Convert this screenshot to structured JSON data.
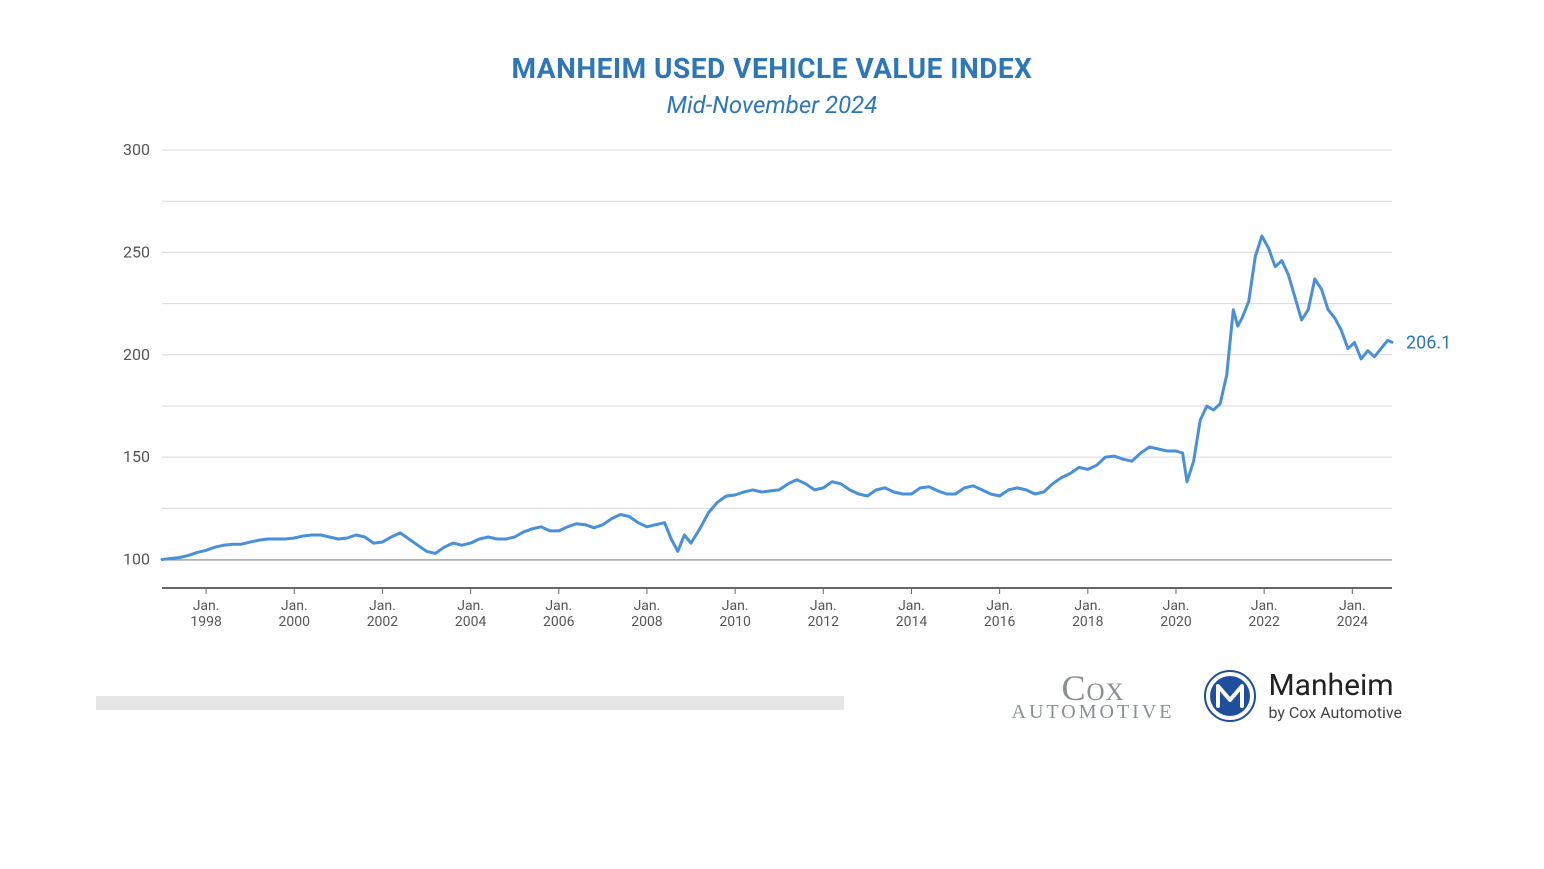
{
  "title": "MANHEIM USED VEHICLE VALUE INDEX",
  "subtitle": "Mid-November 2024",
  "title_color": "#2e76b6",
  "chart": {
    "type": "line",
    "background_color": "#ffffff",
    "grid_color": "#d9d9d9",
    "axis_line_color": "#666666",
    "line_color": "#4a90d9",
    "line_width": 3,
    "ylim": [
      90,
      300
    ],
    "ytick_step": 50,
    "yticks": [
      100,
      150,
      200,
      250,
      300
    ],
    "xtick_year_start": 1998,
    "xtick_year_end": 2024,
    "xtick_year_step": 2,
    "xtick_label_prefix": "Jan.",
    "x_start": 1997.0,
    "x_end": 2024.9,
    "end_value_label": "206.1",
    "end_label_color": "#2e76b6",
    "label_fontsize": 16,
    "series": [
      [
        1997.0,
        100.0
      ],
      [
        1997.2,
        100.5
      ],
      [
        1997.4,
        101.0
      ],
      [
        1997.6,
        102.0
      ],
      [
        1997.8,
        103.5
      ],
      [
        1998.0,
        104.5
      ],
      [
        1998.2,
        106.0
      ],
      [
        1998.4,
        107.0
      ],
      [
        1998.6,
        107.5
      ],
      [
        1998.8,
        107.5
      ],
      [
        1999.0,
        108.5
      ],
      [
        1999.2,
        109.5
      ],
      [
        1999.4,
        110.0
      ],
      [
        1999.6,
        110.0
      ],
      [
        1999.8,
        110.0
      ],
      [
        2000.0,
        110.5
      ],
      [
        2000.2,
        111.5
      ],
      [
        2000.4,
        112.0
      ],
      [
        2000.6,
        112.0
      ],
      [
        2000.8,
        111.0
      ],
      [
        2001.0,
        110.0
      ],
      [
        2001.2,
        110.5
      ],
      [
        2001.4,
        112.0
      ],
      [
        2001.6,
        111.0
      ],
      [
        2001.8,
        108.0
      ],
      [
        2002.0,
        108.5
      ],
      [
        2002.2,
        111.0
      ],
      [
        2002.4,
        113.0
      ],
      [
        2002.6,
        110.0
      ],
      [
        2002.8,
        107.0
      ],
      [
        2003.0,
        104.0
      ],
      [
        2003.2,
        103.0
      ],
      [
        2003.4,
        106.0
      ],
      [
        2003.6,
        108.0
      ],
      [
        2003.8,
        107.0
      ],
      [
        2004.0,
        108.0
      ],
      [
        2004.2,
        110.0
      ],
      [
        2004.4,
        111.0
      ],
      [
        2004.6,
        110.0
      ],
      [
        2004.8,
        110.0
      ],
      [
        2005.0,
        111.0
      ],
      [
        2005.2,
        113.5
      ],
      [
        2005.4,
        115.0
      ],
      [
        2005.6,
        116.0
      ],
      [
        2005.8,
        114.0
      ],
      [
        2006.0,
        114.0
      ],
      [
        2006.2,
        116.0
      ],
      [
        2006.4,
        117.5
      ],
      [
        2006.6,
        117.0
      ],
      [
        2006.8,
        115.5
      ],
      [
        2007.0,
        117.0
      ],
      [
        2007.2,
        120.0
      ],
      [
        2007.4,
        122.0
      ],
      [
        2007.6,
        121.0
      ],
      [
        2007.8,
        118.0
      ],
      [
        2008.0,
        116.0
      ],
      [
        2008.2,
        117.0
      ],
      [
        2008.4,
        118.0
      ],
      [
        2008.55,
        110.0
      ],
      [
        2008.7,
        104.0
      ],
      [
        2008.85,
        112.0
      ],
      [
        2009.0,
        108.0
      ],
      [
        2009.2,
        115.0
      ],
      [
        2009.4,
        123.0
      ],
      [
        2009.6,
        128.0
      ],
      [
        2009.8,
        131.0
      ],
      [
        2010.0,
        131.5
      ],
      [
        2010.2,
        133.0
      ],
      [
        2010.4,
        134.0
      ],
      [
        2010.6,
        133.0
      ],
      [
        2010.8,
        133.5
      ],
      [
        2011.0,
        134.0
      ],
      [
        2011.2,
        137.0
      ],
      [
        2011.4,
        139.0
      ],
      [
        2011.6,
        137.0
      ],
      [
        2011.8,
        134.0
      ],
      [
        2012.0,
        135.0
      ],
      [
        2012.2,
        138.0
      ],
      [
        2012.4,
        137.0
      ],
      [
        2012.6,
        134.0
      ],
      [
        2012.8,
        132.0
      ],
      [
        2013.0,
        131.0
      ],
      [
        2013.2,
        134.0
      ],
      [
        2013.4,
        135.0
      ],
      [
        2013.6,
        133.0
      ],
      [
        2013.8,
        132.0
      ],
      [
        2014.0,
        132.0
      ],
      [
        2014.2,
        135.0
      ],
      [
        2014.4,
        135.5
      ],
      [
        2014.6,
        133.5
      ],
      [
        2014.8,
        132.0
      ],
      [
        2015.0,
        132.0
      ],
      [
        2015.2,
        135.0
      ],
      [
        2015.4,
        136.0
      ],
      [
        2015.6,
        134.0
      ],
      [
        2015.8,
        132.0
      ],
      [
        2016.0,
        131.0
      ],
      [
        2016.2,
        134.0
      ],
      [
        2016.4,
        135.0
      ],
      [
        2016.6,
        134.0
      ],
      [
        2016.8,
        132.0
      ],
      [
        2017.0,
        133.0
      ],
      [
        2017.2,
        137.0
      ],
      [
        2017.4,
        140.0
      ],
      [
        2017.6,
        142.0
      ],
      [
        2017.8,
        145.0
      ],
      [
        2018.0,
        144.0
      ],
      [
        2018.2,
        146.0
      ],
      [
        2018.4,
        150.0
      ],
      [
        2018.6,
        150.5
      ],
      [
        2018.8,
        149.0
      ],
      [
        2019.0,
        148.0
      ],
      [
        2019.2,
        152.0
      ],
      [
        2019.4,
        155.0
      ],
      [
        2019.6,
        154.0
      ],
      [
        2019.8,
        153.0
      ],
      [
        2020.0,
        153.0
      ],
      [
        2020.15,
        152.0
      ],
      [
        2020.25,
        138.0
      ],
      [
        2020.4,
        148.0
      ],
      [
        2020.55,
        168.0
      ],
      [
        2020.7,
        175.0
      ],
      [
        2020.85,
        173.0
      ],
      [
        2021.0,
        176.0
      ],
      [
        2021.15,
        190.0
      ],
      [
        2021.3,
        222.0
      ],
      [
        2021.4,
        214.0
      ],
      [
        2021.5,
        218.0
      ],
      [
        2021.65,
        226.0
      ],
      [
        2021.8,
        248.0
      ],
      [
        2021.95,
        258.0
      ],
      [
        2022.1,
        252.0
      ],
      [
        2022.25,
        243.0
      ],
      [
        2022.4,
        246.0
      ],
      [
        2022.55,
        239.0
      ],
      [
        2022.7,
        228.0
      ],
      [
        2022.85,
        217.0
      ],
      [
        2023.0,
        222.0
      ],
      [
        2023.15,
        237.0
      ],
      [
        2023.3,
        232.0
      ],
      [
        2023.45,
        222.0
      ],
      [
        2023.6,
        218.0
      ],
      [
        2023.75,
        212.0
      ],
      [
        2023.9,
        203.0
      ],
      [
        2024.05,
        206.0
      ],
      [
        2024.2,
        198.0
      ],
      [
        2024.35,
        202.0
      ],
      [
        2024.5,
        199.0
      ],
      [
        2024.65,
        203.0
      ],
      [
        2024.8,
        207.0
      ],
      [
        2024.9,
        206.1
      ]
    ]
  },
  "footer": {
    "cox_line1": "Cox",
    "cox_line2": "AUTOMOTIVE",
    "cox_color": "#8a8f93",
    "manheim_line1": "Manheim",
    "manheim_line2": "by Cox Automotive",
    "manheim_text_color": "#222222",
    "badge_outer_color": "#1f4e9c",
    "badge_inner_color": "#ffffff",
    "gray_bar_color": "#e6e6e6"
  }
}
